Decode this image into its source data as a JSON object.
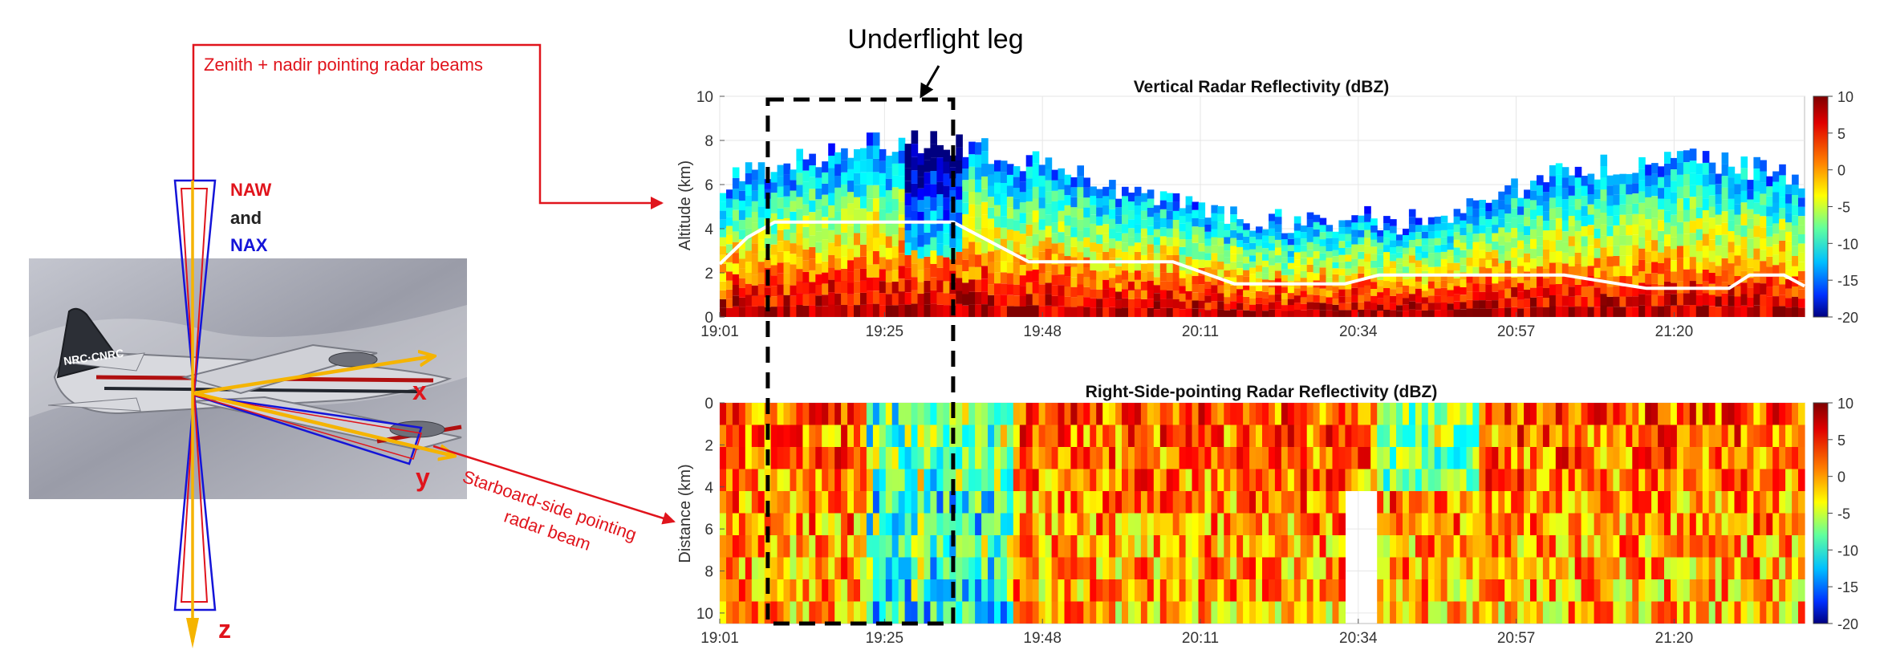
{
  "annotations": {
    "underflight": "Underflight leg",
    "zenith_nadir": "Zenith + nadir pointing radar beams",
    "starboard_line1": "Starboard-side pointing",
    "starboard_line2": "radar beam",
    "naw": "NAW",
    "and": "and",
    "nax": "NAX",
    "axis_x": "x",
    "axis_y": "y",
    "axis_z": "z"
  },
  "colors": {
    "annotation_red": "#e0141c",
    "naw": "#e0141c",
    "nax": "#1414d8",
    "body_axis": "#f5b400",
    "underflight_box": "#000000",
    "flight_track": "#ffffff"
  },
  "colorbar": {
    "ticks": [
      "10",
      "5",
      "0",
      "-5",
      "-10",
      "-15",
      "-20"
    ],
    "min": -20,
    "max": 10,
    "colormap": "jet"
  },
  "chart_data": [
    {
      "type": "heatmap",
      "title": "Vertical Radar Reflectivity (dBZ)",
      "ylabel": "Altitude (km)",
      "xlabel": "",
      "x_ticks": [
        "19:01",
        "19:25",
        "19:48",
        "20:11",
        "20:34",
        "20:57",
        "21:20"
      ],
      "y_ticks": [
        "0",
        "2",
        "4",
        "6",
        "8",
        "10"
      ],
      "ylim": [
        0,
        10
      ],
      "xlim": [
        "19:01",
        "21:39"
      ],
      "underflight_leg": [
        "19:08",
        "19:35"
      ],
      "aircraft_altitude_km": {
        "times": [
          "19:01",
          "19:05",
          "19:09",
          "19:35",
          "19:46",
          "20:07",
          "20:16",
          "20:32",
          "20:37",
          "21:04",
          "21:16",
          "21:28",
          "21:31",
          "21:36",
          "21:39"
        ],
        "altitude": [
          2.4,
          3.6,
          4.3,
          4.3,
          2.5,
          2.5,
          1.5,
          1.5,
          1.9,
          1.9,
          1.3,
          1.3,
          1.9,
          1.9,
          1.4
        ]
      }
    },
    {
      "type": "heatmap",
      "title": "Right-Side-pointing Radar Reflectivity (dBZ)",
      "ylabel": "Distance (km)",
      "xlabel": "",
      "x_ticks": [
        "19:01",
        "19:25",
        "19:48",
        "20:11",
        "20:34",
        "20:57",
        "21:20"
      ],
      "y_ticks": [
        "0",
        "2",
        "4",
        "6",
        "8",
        "10"
      ],
      "ylim": [
        10.5,
        0
      ],
      "xlim": [
        "19:01",
        "21:39"
      ],
      "underflight_leg": [
        "19:08",
        "19:35"
      ]
    }
  ]
}
